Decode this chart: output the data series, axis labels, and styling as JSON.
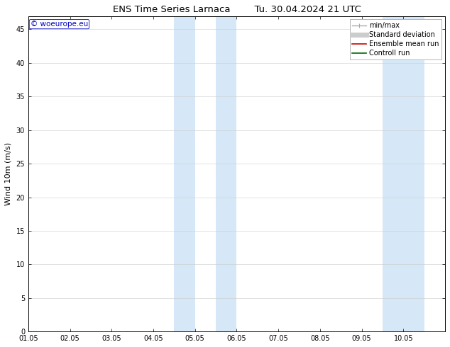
{
  "title_left": "ENS Time Series Larnaca",
  "title_right": "Tu. 30.04.2024 21 UTC",
  "ylabel": "Wind 10m (m/s)",
  "xlim": [
    0,
    10
  ],
  "ylim": [
    0,
    47
  ],
  "yticks": [
    0,
    5,
    10,
    15,
    20,
    25,
    30,
    35,
    40,
    45
  ],
  "xtick_labels": [
    "01.05",
    "02.05",
    "03.05",
    "04.05",
    "05.05",
    "06.05",
    "07.05",
    "08.05",
    "09.05",
    "10.05"
  ],
  "xtick_positions": [
    0,
    1,
    2,
    3,
    4,
    5,
    6,
    7,
    8,
    9
  ],
  "shaded_regions": [
    {
      "xmin": 3.5,
      "xmax": 4.0,
      "color": "#d6e8f7"
    },
    {
      "xmin": 4.5,
      "xmax": 5.0,
      "color": "#d6e8f7"
    },
    {
      "xmin": 8.5,
      "xmax": 9.0,
      "color": "#d6e8f7"
    },
    {
      "xmin": 9.0,
      "xmax": 9.5,
      "color": "#d6e8f7"
    }
  ],
  "bg_color": "#ffffff",
  "grid_color": "#cccccc",
  "watermark_text": "© woeurope.eu",
  "watermark_color": "#0000bb",
  "legend_items": [
    {
      "label": "min/max",
      "color": "#aaaaaa",
      "lw": 1.0,
      "style": "caps"
    },
    {
      "label": "Standard deviation",
      "color": "#cccccc",
      "lw": 5,
      "style": "line"
    },
    {
      "label": "Ensemble mean run",
      "color": "#cc0000",
      "lw": 1.2,
      "style": "line"
    },
    {
      "label": "Controll run",
      "color": "#006600",
      "lw": 1.2,
      "style": "line"
    }
  ],
  "title_fontsize": 9.5,
  "tick_fontsize": 7,
  "ylabel_fontsize": 8,
  "legend_fontsize": 7,
  "watermark_fontsize": 7.5
}
